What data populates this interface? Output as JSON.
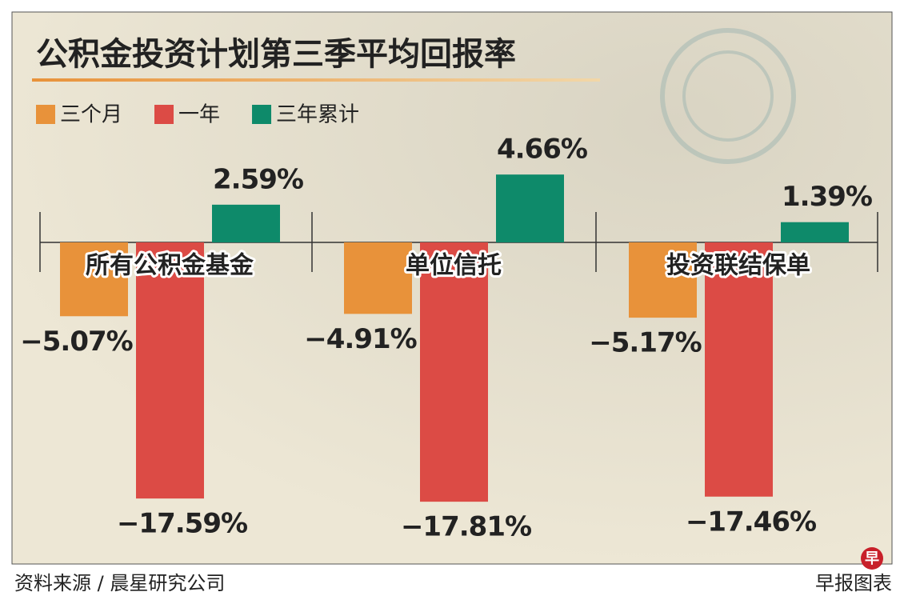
{
  "chart_data": {
    "type": "bar",
    "title": "公积金投资计划第三季平均回报率",
    "categories": [
      "所有公积金基金",
      "单位信托",
      "投资联结保单"
    ],
    "series": [
      {
        "name": "三个月",
        "color": "#e8923a",
        "values": [
          -5.07,
          -4.91,
          -5.17
        ],
        "value_labels": [
          "−5.07%",
          "−4.91%",
          "−5.17%"
        ]
      },
      {
        "name": "一年",
        "color": "#dc4b45",
        "values": [
          -17.59,
          -17.81,
          -17.46
        ],
        "value_labels": [
          "−17.59%",
          "−17.81%",
          "−17.46%"
        ]
      },
      {
        "name": "三年累计",
        "color": "#0e8a6a",
        "values": [
          2.59,
          4.66,
          1.39
        ],
        "value_labels": [
          "2.59%",
          "4.66%",
          "1.39%"
        ]
      }
    ],
    "source": "资料来源 / 晨星研究公司",
    "credit": "早报图表",
    "badge": "早"
  }
}
